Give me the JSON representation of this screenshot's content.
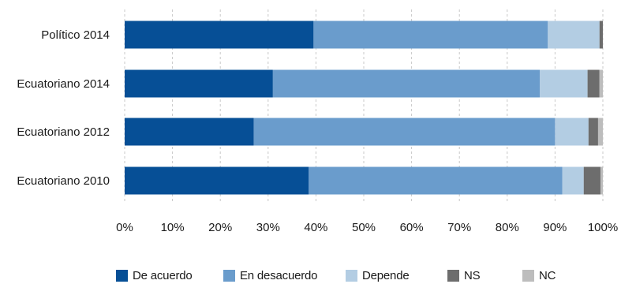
{
  "chart_data": {
    "type": "bar",
    "orientation": "horizontal",
    "stacked": true,
    "title": "",
    "xlabel": "",
    "ylabel": "",
    "categories": [
      "Político 2014",
      "Ecuatoriano 2014",
      "Ecuatoriano 2012",
      "Ecuatoriano 2010"
    ],
    "xlim": [
      0,
      100
    ],
    "x_ticks": [
      "0%",
      "10%",
      "20%",
      "30%",
      "40%",
      "50%",
      "60%",
      "70%",
      "80%",
      "90%",
      "100%"
    ],
    "grid": true,
    "legend_position": "bottom",
    "series": [
      {
        "name": "De acuerdo",
        "color": "#064f96",
        "values": [
          39.5,
          31.0,
          27.0,
          38.5
        ]
      },
      {
        "name": "En desacuerdo",
        "color": "#6a9ccc",
        "values": [
          49.0,
          55.8,
          63.0,
          53.0
        ]
      },
      {
        "name": "Depende",
        "color": "#b3cde3",
        "values": [
          10.8,
          10.0,
          7.0,
          4.5
        ]
      },
      {
        "name": "NS",
        "color": "#6d6d6d",
        "values": [
          0.7,
          2.5,
          2.0,
          3.5
        ]
      },
      {
        "name": "NC",
        "color": "#bdbdbd",
        "values": [
          0.0,
          0.7,
          1.0,
          0.5
        ]
      }
    ]
  }
}
